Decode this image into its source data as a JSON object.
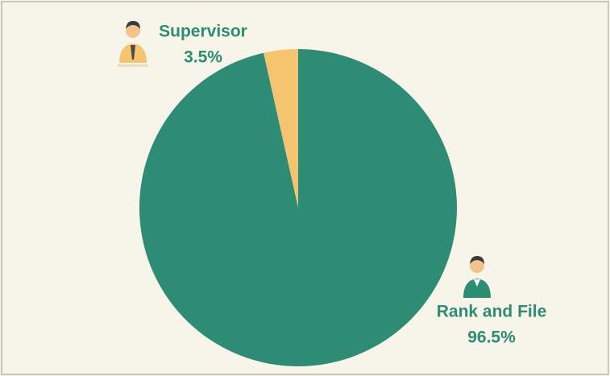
{
  "chart_data": {
    "type": "pie",
    "categories": [
      "Supervisor",
      "Rank and File"
    ],
    "values": [
      3.5,
      96.5
    ],
    "value_labels": [
      "3.5%",
      "96.5%"
    ],
    "colors": [
      "#f4c46e",
      "#2e8c74"
    ]
  }
}
